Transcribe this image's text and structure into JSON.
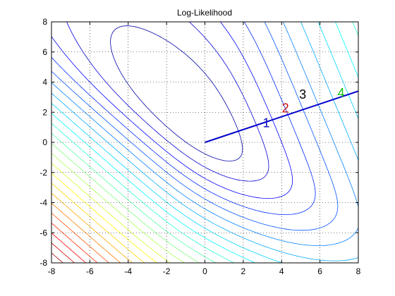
{
  "chart_data": {
    "type": "contour",
    "title": "Log-Likelihood",
    "xlabel": "",
    "ylabel": "",
    "xlim": [
      -8,
      8
    ],
    "ylim": [
      -8,
      8
    ],
    "xticks": [
      -8,
      -6,
      -4,
      -2,
      0,
      2,
      4,
      6,
      8
    ],
    "yticks": [
      -8,
      -6,
      -4,
      -2,
      0,
      2,
      4,
      6,
      8
    ],
    "grid": true,
    "grid_style": "dotted",
    "colormap": "jet",
    "contour_levels": 24,
    "path": {
      "color": "#0000cc",
      "points": [
        [
          0,
          0
        ],
        [
          8,
          3.4
        ]
      ]
    },
    "annotations": [
      {
        "text": "1",
        "x": 3.2,
        "y": 1.0,
        "color": "#1010c0"
      },
      {
        "text": "2",
        "x": 4.2,
        "y": 2.0,
        "color": "#d01010"
      },
      {
        "text": "3",
        "x": 5.1,
        "y": 2.9,
        "color": "#000000"
      },
      {
        "text": "4",
        "x": 7.1,
        "y": 3.0,
        "color": "#10c010"
      }
    ]
  }
}
